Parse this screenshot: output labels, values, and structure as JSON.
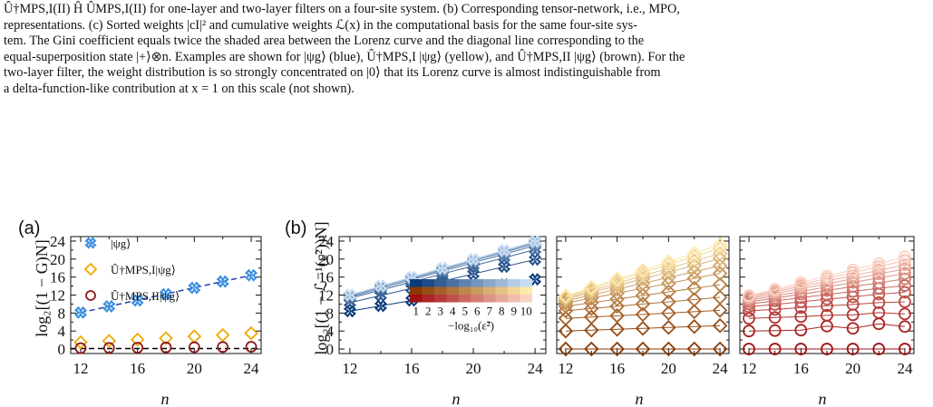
{
  "caption": {
    "line1": "Û†MPS,I(II) Ĥ ÛMPS,I(II) for one-layer and two-layer filters on a four-site system. (b) Corresponding tensor-network, i.e., MPO,",
    "line2": "representations. (c) Sorted weights |cI|² and cumulative weights ℒ(x) in the computational basis for the same four-site sys-",
    "line3": "tem. The Gini coefficient equals twice the shaded area between the Lorenz curve and the diagonal line corresponding to the",
    "line4": "equal-superposition state |+⟩⊗n. Examples are shown for |ψg⟩ (blue), Û†MPS,I |ψg⟩ (yellow), and Û†MPS,II |ψg⟩ (brown). For the",
    "line5": "two-layer filter, the weight distribution is so strongly concentrated on |0⟩ that its Lorenz curve is almost indistinguishable from",
    "line6": "a delta-function-like contribution at x = 1 on this scale (not shown)."
  },
  "colors": {
    "blue": "#3a8ee0",
    "yellow": "#f0a800",
    "brown": "#8b1a1a",
    "dash_blue": "#1f3fa8",
    "dash_black": "#000000"
  },
  "panel_a": {
    "label": "(a)",
    "xlabel": "n",
    "ylabel": "log₂[(1 − G)N]",
    "legend": [
      "|ψg⟩",
      "Û†MPS,I|ψg⟩",
      "Û†MPS,II|ψg⟩"
    ]
  },
  "panel_b": {
    "label": "(b)",
    "xlabel": "n",
    "ylabel": "log₂[(1 − ℒ⁻¹(ε̃²))N]",
    "colorbar_ticks": [
      "1",
      "2",
      "3",
      "4",
      "5",
      "6",
      "7",
      "8",
      "9",
      "10"
    ],
    "colorbar_label": "−log₁₀(ε̃²)"
  },
  "chart_data": [
    {
      "type": "scatter",
      "panel": "a",
      "x": [
        12,
        14,
        16,
        18,
        20,
        22,
        24
      ],
      "xlim": [
        11.3,
        24.7
      ],
      "ylim": [
        -1,
        25
      ],
      "xticks": [
        12,
        16,
        20,
        24
      ],
      "yticks": [
        0,
        4,
        8,
        12,
        16,
        20,
        24
      ],
      "series": [
        {
          "name": "|ψg⟩",
          "marker": "x",
          "values": [
            8.1,
            9.5,
            10.8,
            12.2,
            13.6,
            15.0,
            16.4
          ]
        },
        {
          "name": "Û†MPS,I|ψg⟩",
          "marker": "diamond",
          "values": [
            1.5,
            1.8,
            2.1,
            2.4,
            2.8,
            3.1,
            3.5
          ]
        },
        {
          "name": "Û†MPS,II|ψg⟩",
          "marker": "circle",
          "values": [
            0.2,
            0.25,
            0.3,
            0.35,
            0.4,
            0.45,
            0.5
          ]
        }
      ],
      "fits": [
        {
          "color": "dash_blue",
          "from": [
            12,
            8.1
          ],
          "to": [
            24,
            16.4
          ]
        },
        {
          "color": "dash_black",
          "from": [
            11.3,
            0.1
          ],
          "to": [
            24.7,
            0.1
          ]
        }
      ]
    },
    {
      "type": "line",
      "panel": "b-blue",
      "x": [
        12,
        14,
        16,
        18,
        20,
        22,
        24
      ],
      "xlim": [
        11.3,
        24.7
      ],
      "ylim": [
        -1,
        25
      ],
      "xticks": [
        12,
        16,
        20,
        24
      ],
      "yticks": [
        0,
        4,
        8,
        12,
        16,
        20,
        24
      ],
      "marker": "x",
      "series": [
        {
          "values": [
            8.4,
            9.6,
            10.8,
            12.0,
            13.1,
            14.3,
            15.5
          ]
        },
        {
          "values": [
            10.3,
            11.9,
            13.5,
            15.1,
            16.7,
            18.3,
            19.9
          ]
        },
        {
          "values": [
            11.3,
            13.1,
            14.9,
            16.7,
            18.5,
            20.3,
            22.1
          ]
        },
        {
          "values": [
            11.6,
            13.5,
            15.4,
            17.3,
            19.2,
            21.1,
            23.0
          ]
        },
        {
          "values": [
            11.8,
            13.8,
            15.7,
            17.6,
            19.6,
            21.5,
            23.4
          ]
        },
        {
          "values": [
            11.9,
            13.9,
            15.8,
            17.8,
            19.7,
            21.7,
            23.6
          ]
        },
        {
          "values": [
            12.0,
            14.0,
            15.9,
            17.9,
            19.8,
            21.8,
            23.8
          ]
        },
        {
          "values": [
            12.0,
            14.0,
            16.0,
            18.0,
            19.9,
            21.9,
            23.9
          ]
        },
        {
          "values": [
            12.0,
            14.0,
            16.0,
            18.0,
            20.0,
            22.0,
            24.0
          ]
        }
      ]
    },
    {
      "type": "line",
      "panel": "b-yellow",
      "x": [
        12,
        14,
        16,
        18,
        20,
        22,
        24
      ],
      "xlim": [
        11.3,
        24.7
      ],
      "ylim": [
        -1,
        25
      ],
      "xticks": [
        12,
        16,
        20,
        24
      ],
      "marker": "diamond",
      "series": [
        {
          "values": [
            0.0,
            0.0,
            0.0,
            0.0,
            0.0,
            0.0,
            0.0
          ]
        },
        {
          "values": [
            4.0,
            4.2,
            4.4,
            4.6,
            4.8,
            5.0,
            5.2
          ]
        },
        {
          "values": [
            6.8,
            7.1,
            7.4,
            7.7,
            8.0,
            8.3,
            8.6
          ]
        },
        {
          "values": [
            8.5,
            9.0,
            9.5,
            10.0,
            10.5,
            11.0,
            11.5
          ]
        },
        {
          "values": [
            9.5,
            10.3,
            11.1,
            11.9,
            12.7,
            13.5,
            14.3
          ]
        },
        {
          "values": [
            10.2,
            11.3,
            12.4,
            13.5,
            14.6,
            15.7,
            16.8
          ]
        },
        {
          "values": [
            10.7,
            12.0,
            13.3,
            14.6,
            15.9,
            17.2,
            18.5
          ]
        },
        {
          "values": [
            11.1,
            12.6,
            14.1,
            15.6,
            17.1,
            18.6,
            20.1
          ]
        },
        {
          "values": [
            11.4,
            13.0,
            14.6,
            16.3,
            17.9,
            19.6,
            21.2
          ]
        },
        {
          "values": [
            11.6,
            13.4,
            15.2,
            17.0,
            18.8,
            20.6,
            22.4
          ]
        },
        {
          "values": [
            11.8,
            13.7,
            15.6,
            17.5,
            19.4,
            21.3,
            23.2
          ]
        }
      ]
    },
    {
      "type": "line",
      "panel": "b-brown",
      "x": [
        12,
        14,
        16,
        18,
        20,
        22,
        24
      ],
      "xlim": [
        11.3,
        24.7
      ],
      "ylim": [
        -1,
        25
      ],
      "xticks": [
        12,
        16,
        20,
        24
      ],
      "marker": "circle",
      "series": [
        {
          "values": [
            0.0,
            0.0,
            0.0,
            0.0,
            0.0,
            0.0,
            0.0
          ]
        },
        {
          "values": [
            4.0,
            4.1,
            4.2,
            5.1,
            4.6,
            5.6,
            5.0
          ]
        },
        {
          "values": [
            6.8,
            7.0,
            7.2,
            7.5,
            7.6,
            8.1,
            7.8
          ]
        },
        {
          "values": [
            8.5,
            8.8,
            9.2,
            9.6,
            9.9,
            10.3,
            10.5
          ]
        },
        {
          "values": [
            9.4,
            9.9,
            10.5,
            11.1,
            11.6,
            12.2,
            12.6
          ]
        },
        {
          "values": [
            10.0,
            10.7,
            11.4,
            12.1,
            12.8,
            13.5,
            14.1
          ]
        },
        {
          "values": [
            10.5,
            11.3,
            12.2,
            13.0,
            13.9,
            14.7,
            15.6
          ]
        },
        {
          "values": [
            10.9,
            11.8,
            12.8,
            13.8,
            14.8,
            15.8,
            16.8
          ]
        },
        {
          "values": [
            11.2,
            12.3,
            13.4,
            14.5,
            15.6,
            16.7,
            17.8
          ]
        },
        {
          "values": [
            11.5,
            12.7,
            13.9,
            15.1,
            16.3,
            17.5,
            18.7
          ]
        },
        {
          "values": [
            11.7,
            13.0,
            14.3,
            15.7,
            17.0,
            18.3,
            19.7
          ]
        },
        {
          "values": [
            11.9,
            13.3,
            14.8,
            16.2,
            17.6,
            19.0,
            20.5
          ]
        }
      ]
    }
  ]
}
